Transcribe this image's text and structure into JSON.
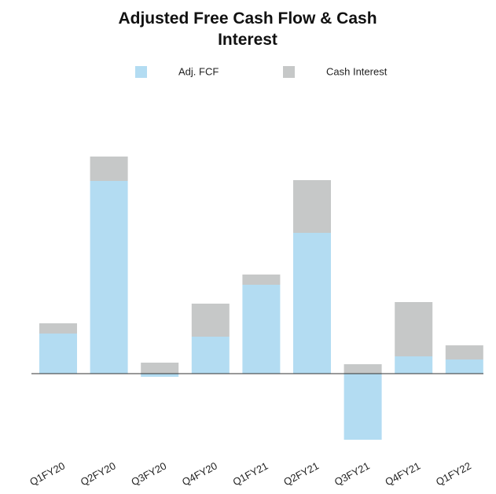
{
  "chart_data": {
    "type": "stacked_bar",
    "title": "Adjusted Free Cash Flow & Cash Interest",
    "categories": [
      "Q1FY20",
      "Q2FY20",
      "Q3FY20",
      "Q4FY20",
      "Q1FY21",
      "Q2FY21",
      "Q3FY21",
      "Q4FY21",
      "Q1FY22"
    ],
    "series": [
      {
        "name": "Adj. FCF",
        "color": "#b3dcf2",
        "values": [
          51,
          245,
          -4,
          47,
          113,
          179,
          -84,
          22,
          18
        ]
      },
      {
        "name": "Cash Interest",
        "color": "#c6c8c8",
        "values": [
          13,
          31,
          14,
          42,
          13,
          67,
          12,
          69,
          18
        ]
      }
    ]
  }
}
